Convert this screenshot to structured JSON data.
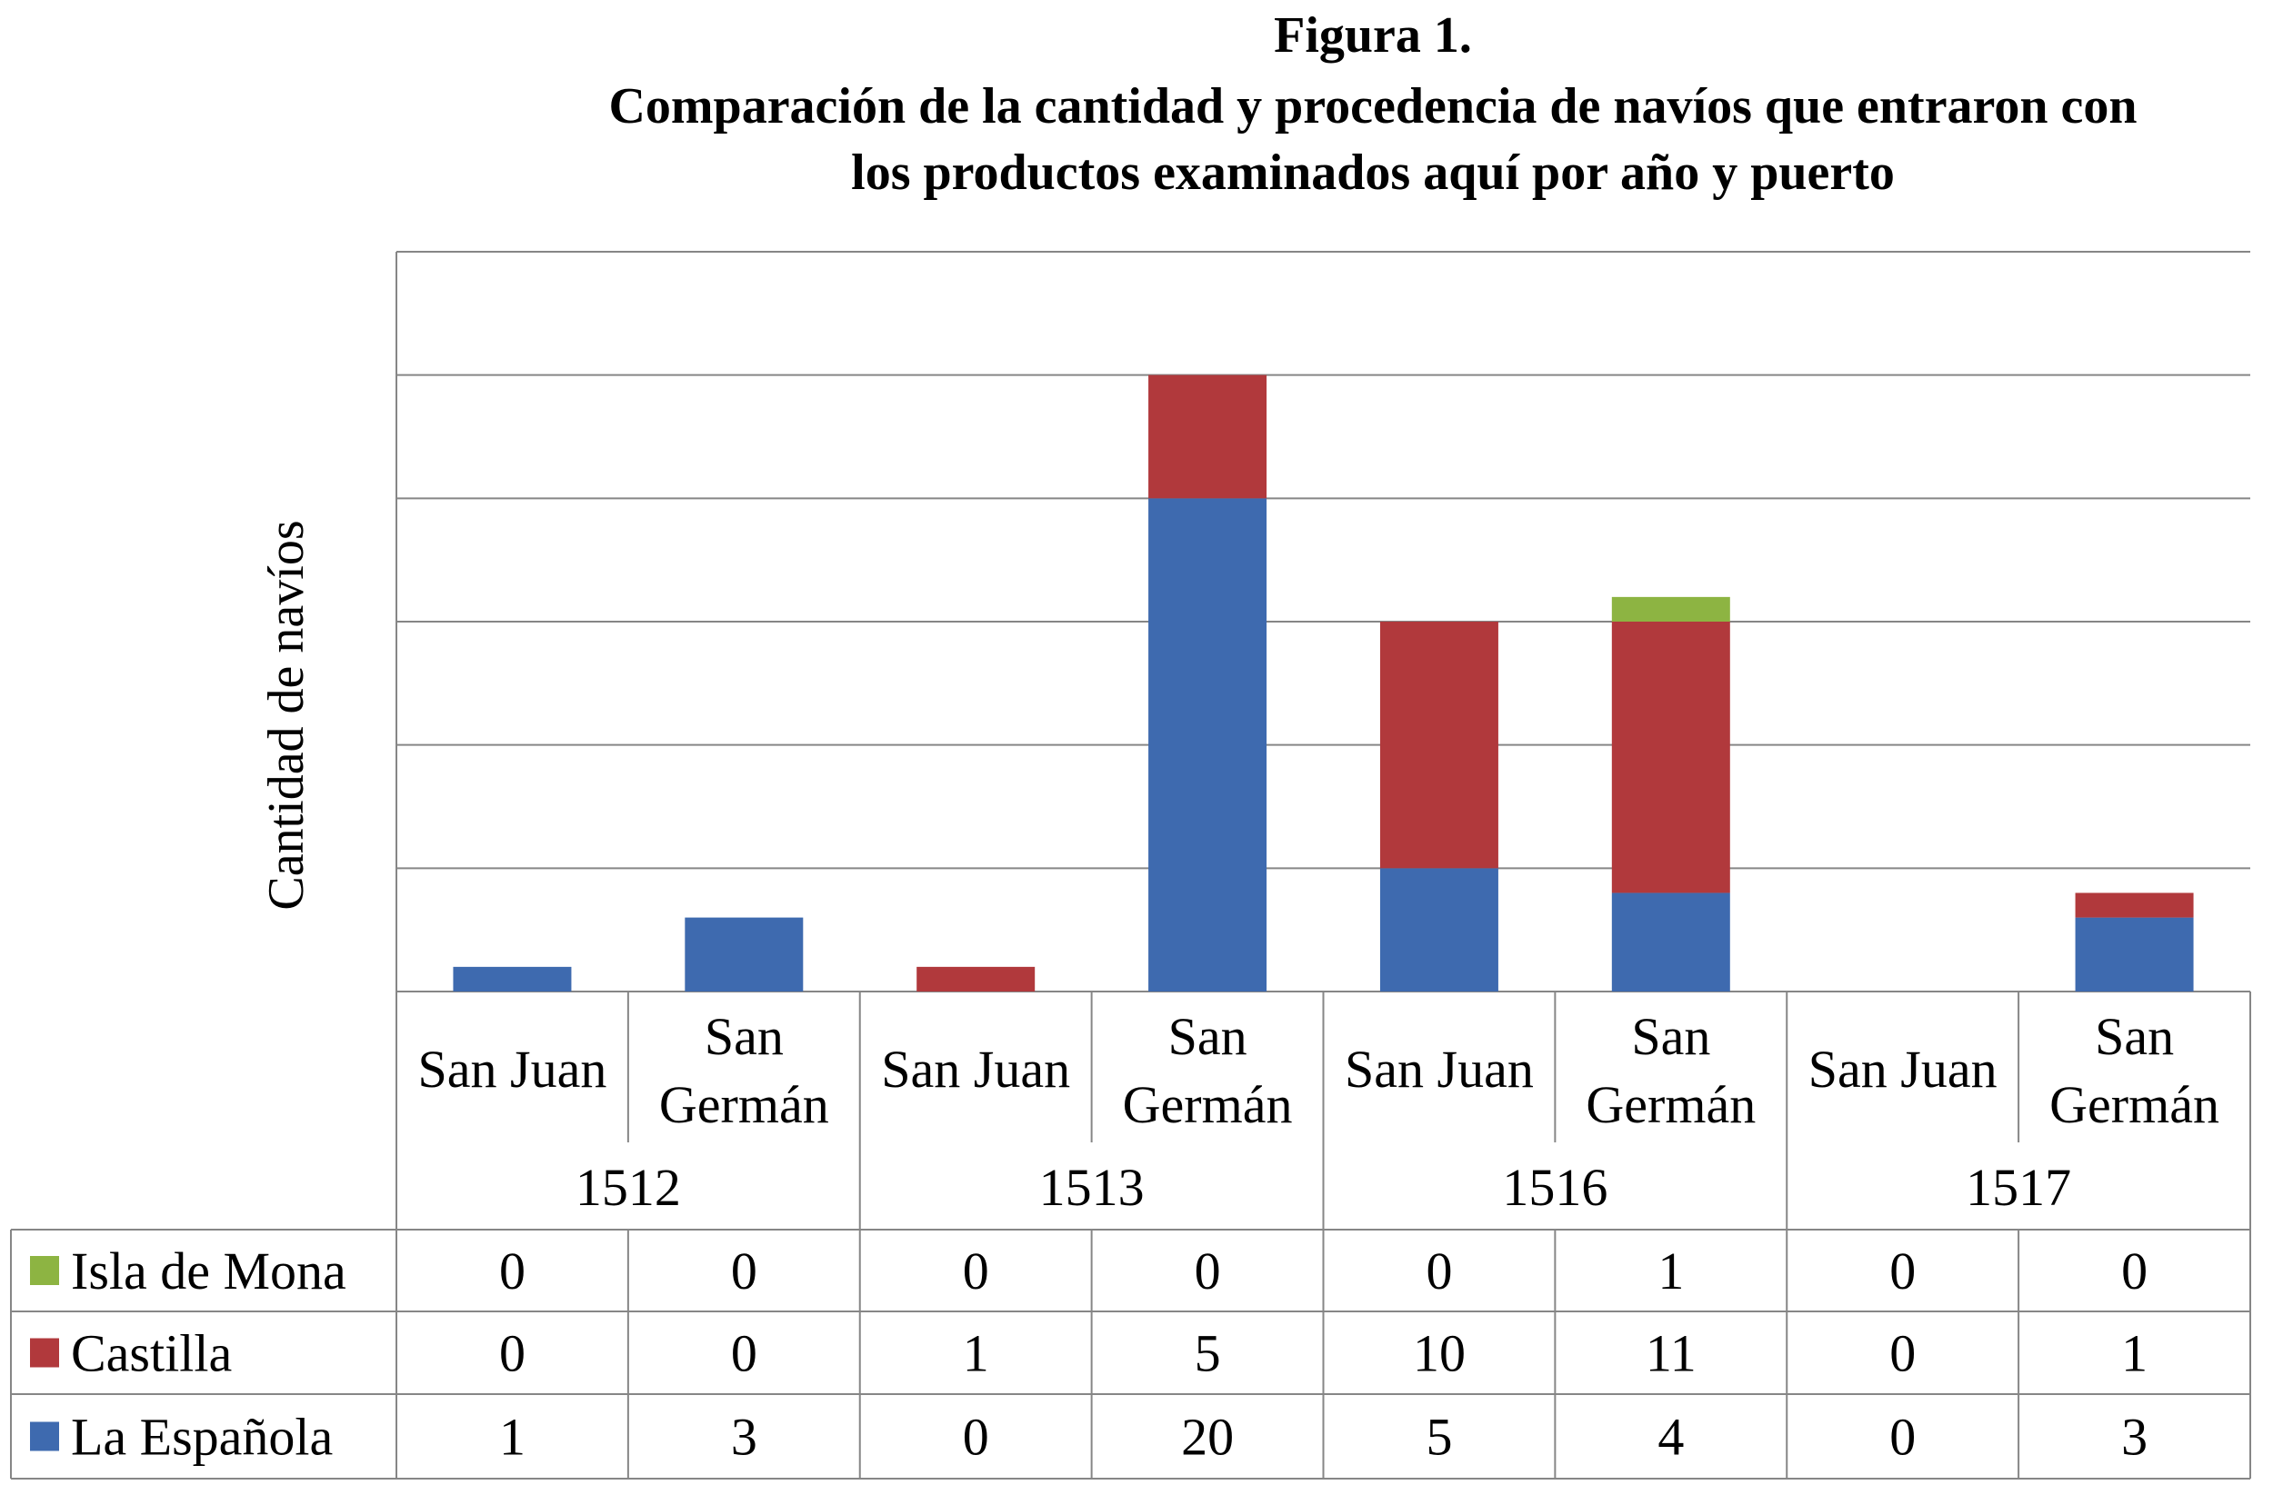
{
  "chart_data": {
    "type": "bar",
    "stacked": true,
    "title": "Figura 1.",
    "subtitle_lines": [
      "Comparación de la cantidad y procedencia de navíos que entraron con",
      "los productos examinados aquí por año y puerto"
    ],
    "ylabel": "Cantidad de navíos",
    "ylim": [
      0,
      30
    ],
    "grid": true,
    "legend_position": "data-table",
    "categories": [
      "San Juan",
      "San Germán",
      "San Juan",
      "San Germán",
      "San Juan",
      "San Germán",
      "San Juan",
      "San Germán"
    ],
    "category_lines": [
      [
        "San Juan"
      ],
      [
        "San",
        "Germán"
      ],
      [
        "San Juan"
      ],
      [
        "San",
        "Germán"
      ],
      [
        "San Juan"
      ],
      [
        "San",
        "Germán"
      ],
      [
        "San Juan"
      ],
      [
        "San",
        "Germán"
      ]
    ],
    "groups": [
      "1512",
      "1513",
      "1516",
      "1517"
    ],
    "series": [
      {
        "name": "Isla de Mona",
        "color": "#8db442",
        "values": [
          0,
          0,
          0,
          0,
          0,
          1,
          0,
          0
        ]
      },
      {
        "name": "Castilla",
        "color": "#b1393c",
        "values": [
          0,
          0,
          1,
          5,
          10,
          11,
          0,
          1
        ]
      },
      {
        "name": "La Española",
        "color": "#3e6aaf",
        "values": [
          1,
          3,
          0,
          20,
          5,
          4,
          0,
          3
        ]
      }
    ]
  }
}
